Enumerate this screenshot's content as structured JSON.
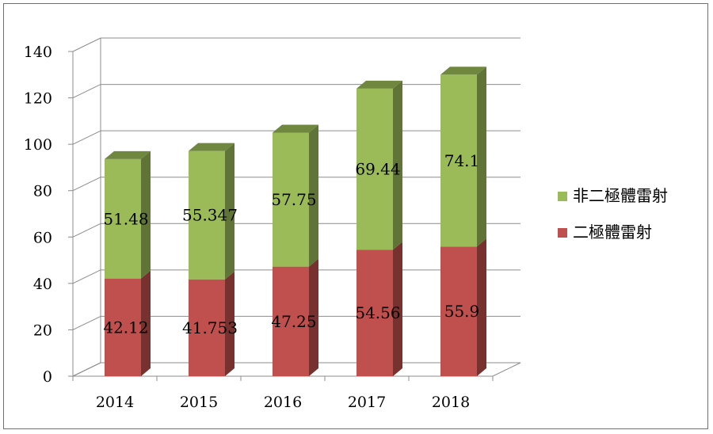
{
  "chart_data": {
    "type": "bar",
    "stacked": true,
    "three_d": true,
    "categories": [
      "2014",
      "2015",
      "2016",
      "2017",
      "2018"
    ],
    "series": [
      {
        "name": "二極體雷射",
        "values": [
          42.12,
          41.753,
          47.25,
          54.56,
          55.9
        ],
        "labels": [
          "42.12",
          "41.753",
          "47.25",
          "54.56",
          "55.9"
        ],
        "color": "#c0504d"
      },
      {
        "name": "非二極體雷射",
        "values": [
          51.48,
          55.347,
          57.75,
          69.44,
          74.1
        ],
        "labels": [
          "51.48",
          "55.347",
          "57.75",
          "69.44",
          "74.1"
        ],
        "color": "#9bbb59"
      }
    ],
    "y_ticks": [
      "0",
      "20",
      "40",
      "60",
      "80",
      "100",
      "120",
      "140"
    ],
    "ylim": [
      0,
      140
    ],
    "grid": true,
    "legend_position": "right",
    "legend_order": [
      "非二極體雷射",
      "二極體雷射"
    ]
  }
}
